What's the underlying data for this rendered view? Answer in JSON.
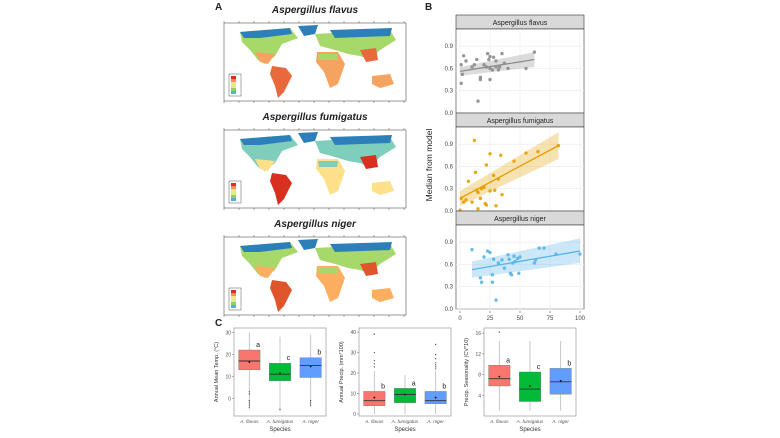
{
  "panels": {
    "a_label": "A",
    "b_label": "B",
    "c_label": "C"
  },
  "maps": [
    {
      "title": "Aspergillus flavus"
    },
    {
      "title": "Aspergillus fumigatus"
    },
    {
      "title": "Aspergillus niger"
    }
  ],
  "chart_data": [
    {
      "type": "scatter",
      "panel": "B",
      "xlabel": "Frequency (in %)",
      "ylabel": "Median from model",
      "xlim": [
        0,
        100
      ],
      "ylim": [
        0,
        1.05
      ],
      "xticks": [
        "0",
        "25",
        "50",
        "75",
        "100"
      ],
      "yticks": [
        "0.0",
        "0.3",
        "0.6",
        "0.9"
      ],
      "grid": true,
      "facets": [
        {
          "title": "Aspergillus flavus",
          "color": "#8c8c8c",
          "fit": {
            "x0": 0,
            "y0": 0.56,
            "x1": 62,
            "y1": 0.72,
            "ci_lo0": 0.5,
            "ci_hi0": 0.62,
            "ci_lo1": 0.62,
            "ci_hi1": 0.82
          },
          "points": [
            [
              1,
              0.65
            ],
            [
              1,
              0.4
            ],
            [
              2,
              0.52
            ],
            [
              3,
              0.77
            ],
            [
              5,
              0.7
            ],
            [
              10,
              0.62
            ],
            [
              12,
              0.65
            ],
            [
              14,
              0.72
            ],
            [
              15,
              0.16
            ],
            [
              17,
              0.48
            ],
            [
              17,
              0.45
            ],
            [
              20,
              0.65
            ],
            [
              22,
              0.62
            ],
            [
              23,
              0.8
            ],
            [
              24,
              0.72
            ],
            [
              25,
              0.76
            ],
            [
              25,
              0.45
            ],
            [
              25,
              0.6
            ],
            [
              27,
              0.58
            ],
            [
              28,
              0.75
            ],
            [
              30,
              0.7
            ],
            [
              30,
              0.62
            ],
            [
              32,
              0.58
            ],
            [
              33,
              0.62
            ],
            [
              35,
              0.8
            ],
            [
              37,
              0.67
            ],
            [
              40,
              0.6
            ],
            [
              55,
              0.6
            ],
            [
              62,
              0.82
            ]
          ]
        },
        {
          "title": "Aspergillus fumigatus",
          "color": "#e69f00",
          "fit": {
            "x0": 0,
            "y0": 0.17,
            "x1": 82,
            "y1": 0.88,
            "ci_lo0": 0.07,
            "ci_hi0": 0.27,
            "ci_lo1": 0.7,
            "ci_hi1": 1.06
          },
          "points": [
            [
              0,
              0.01
            ],
            [
              1,
              0.17
            ],
            [
              3,
              0.12
            ],
            [
              5,
              0.15
            ],
            [
              7,
              0.4
            ],
            [
              10,
              0.12
            ],
            [
              12,
              0.95
            ],
            [
              13,
              0.52
            ],
            [
              14,
              0.28
            ],
            [
              15,
              0.03
            ],
            [
              15,
              0.25
            ],
            [
              17,
              0.17
            ],
            [
              18,
              0.3
            ],
            [
              20,
              0.32
            ],
            [
              21,
              0.1
            ],
            [
              22,
              0.08
            ],
            [
              22,
              0.62
            ],
            [
              25,
              0.77
            ],
            [
              25,
              0.27
            ],
            [
              28,
              0.48
            ],
            [
              29,
              0.28
            ],
            [
              30,
              0.07
            ],
            [
              32,
              0.43
            ],
            [
              34,
              0.75
            ],
            [
              35,
              0.22
            ],
            [
              45,
              0.67
            ],
            [
              55,
              0.78
            ],
            [
              65,
              0.8
            ],
            [
              82,
              0.88
            ]
          ]
        },
        {
          "title": "Aspergillus niger",
          "color": "#56b4e9",
          "fit": {
            "x0": 10,
            "y0": 0.53,
            "x1": 100,
            "y1": 0.78,
            "ci_lo0": 0.42,
            "ci_hi0": 0.64,
            "ci_lo1": 0.62,
            "ci_hi1": 0.95
          },
          "points": [
            [
              10,
              0.8
            ],
            [
              17,
              0.42
            ],
            [
              18,
              0.36
            ],
            [
              20,
              0.7
            ],
            [
              23,
              0.78
            ],
            [
              25,
              0.76
            ],
            [
              27,
              0.46
            ],
            [
              27,
              0.36
            ],
            [
              28,
              0.67
            ],
            [
              30,
              0.12
            ],
            [
              32,
              0.62
            ],
            [
              35,
              0.66
            ],
            [
              37,
              0.55
            ],
            [
              40,
              0.73
            ],
            [
              41,
              0.67
            ],
            [
              42,
              0.48
            ],
            [
              43,
              0.46
            ],
            [
              44,
              0.62
            ],
            [
              45,
              0.71
            ],
            [
              46,
              0.64
            ],
            [
              48,
              0.68
            ],
            [
              49,
              0.48
            ],
            [
              50,
              0.7
            ],
            [
              62,
              0.62
            ],
            [
              63,
              0.66
            ],
            [
              66,
              0.82
            ],
            [
              70,
              0.82
            ],
            [
              80,
              0.74
            ],
            [
              100,
              0.74
            ]
          ]
        }
      ]
    },
    {
      "type": "box",
      "panel": "C",
      "subplots": [
        {
          "ylabel": "Annual Mean Temp. (°C)",
          "xlabel": "Species",
          "ylim": [
            -8,
            32
          ],
          "yticks": [
            0,
            10,
            20,
            30
          ],
          "categories": [
            "A. flavus",
            "A. fumigatus",
            "A. niger"
          ],
          "colors": [
            "#f8766d",
            "#00ba38",
            "#619cff"
          ],
          "boxes": [
            {
              "whisker_lo": -5,
              "q1": 13,
              "median": 17,
              "q3": 22,
              "whisker_hi": 30,
              "mean": 16.5,
              "letter": "a",
              "outliers": [
                -4,
                -3,
                -2,
                -1,
                2,
                3
              ]
            },
            {
              "whisker_lo": -6,
              "q1": 8,
              "median": 11,
              "q3": 16,
              "whisker_hi": 28,
              "mean": 11.5,
              "letter": "c",
              "outliers": [
                -5
              ]
            },
            {
              "whisker_lo": -4,
              "q1": 9.5,
              "median": 15,
              "q3": 18.5,
              "whisker_hi": 29,
              "mean": 14.5,
              "letter": "b",
              "outliers": [
                -3,
                -2,
                -1
              ]
            }
          ]
        },
        {
          "ylabel": "Annual Precip. (mm*100)",
          "xlabel": "Species",
          "ylim": [
            -1,
            42
          ],
          "yticks": [
            0,
            10,
            20,
            30,
            40
          ],
          "categories": [
            "A. flavus",
            "A. fumigatus",
            "A. niger"
          ],
          "colors": [
            "#f8766d",
            "#00ba38",
            "#619cff"
          ],
          "boxes": [
            {
              "whisker_lo": 0,
              "q1": 4,
              "median": 6.5,
              "q3": 11,
              "whisker_hi": 21,
              "mean": 8,
              "letter": "b",
              "outliers": [
                23,
                24.5,
                26,
                30,
                39
              ]
            },
            {
              "whisker_lo": 0,
              "q1": 5.5,
              "median": 9.5,
              "q3": 12.5,
              "whisker_hi": 19,
              "mean": 9.5,
              "letter": "a",
              "outliers": []
            },
            {
              "whisker_lo": 0,
              "q1": 5,
              "median": 6.5,
              "q3": 11,
              "whisker_hi": 21,
              "mean": 8,
              "letter": "b",
              "outliers": [
                22,
                23,
                24,
                25,
                27,
                29,
                34
              ]
            }
          ]
        },
        {
          "ylabel": "Precip. Seasonality (CV*10)",
          "xlabel": "Species",
          "ylim": [
            0,
            17
          ],
          "yticks": [
            4,
            8,
            12,
            16
          ],
          "categories": [
            "A. flavus",
            "A. fumigatus",
            "A. niger"
          ],
          "colors": [
            "#f8766d",
            "#00ba38",
            "#619cff"
          ],
          "boxes": [
            {
              "whisker_lo": 1,
              "q1": 5.8,
              "median": 7.2,
              "q3": 9.8,
              "whisker_hi": 14.5,
              "mean": 7.6,
              "letter": "a",
              "outliers": [
                16.2
              ]
            },
            {
              "whisker_lo": 1,
              "q1": 2.8,
              "median": 5.2,
              "q3": 8.5,
              "whisker_hi": 14.5,
              "mean": 5.8,
              "letter": "c",
              "outliers": []
            },
            {
              "whisker_lo": 1,
              "q1": 4.2,
              "median": 6.6,
              "q3": 9.2,
              "whisker_hi": 14.5,
              "mean": 6.8,
              "letter": "b",
              "outliers": []
            }
          ]
        }
      ]
    }
  ]
}
